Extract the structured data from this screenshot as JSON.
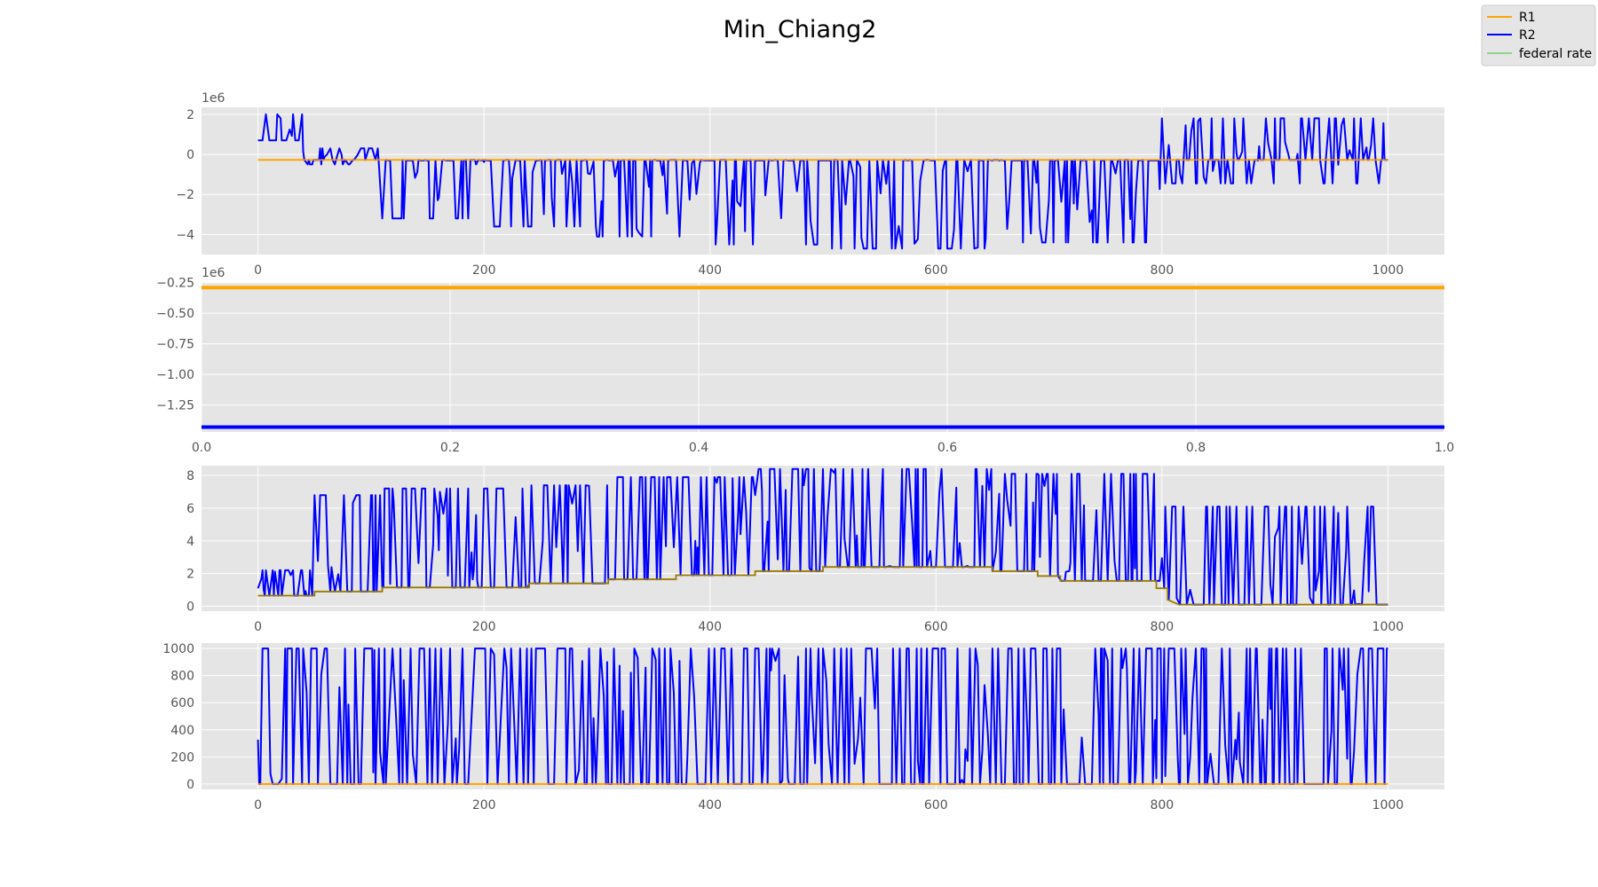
{
  "figure": {
    "title": "Min_Chiang2"
  },
  "legend": {
    "placement": "top-right",
    "entries": [
      {
        "label": "R1",
        "color": "#ffa500"
      },
      {
        "label": "R2",
        "color": "#0000ff"
      },
      {
        "label": "federal rate",
        "color": "#8fd48f"
      }
    ]
  },
  "colors": {
    "panel_background": "#e5e5e5",
    "grid": "#ffffff",
    "tick_text": "#555555"
  },
  "chart_data": [
    {
      "type": "line",
      "panel": 1,
      "offset_label": "1e6",
      "xlim": [
        -50,
        1050
      ],
      "ylim": [
        -5.0,
        2.35
      ],
      "x_ticks": [
        0,
        200,
        400,
        600,
        800,
        1000
      ],
      "x_tick_labels": [
        "0",
        "200",
        "400",
        "600",
        "800",
        "1000"
      ],
      "y_ticks": [
        2,
        0,
        -2,
        -4
      ],
      "y_tick_labels": [
        "2",
        "0",
        "−2",
        "−4"
      ],
      "grid": true,
      "series": [
        {
          "name": "R1",
          "color": "#ffa500",
          "points": [
            [
              0,
              -0.27
            ],
            [
              1000,
              -0.27
            ]
          ]
        },
        {
          "name": "R2",
          "color": "#0000ff",
          "style": "oscillating",
          "baseline": -0.27,
          "segments": [
            {
              "x0": 0,
              "x1": 40,
              "lo": 0.7,
              "hi": 2.0
            },
            {
              "x0": 40,
              "x1": 110,
              "lo": -0.5,
              "hi": 0.3
            },
            {
              "x0": 110,
              "x1": 200,
              "lo": -3.2,
              "hi": -0.3
            },
            {
              "x0": 200,
              "x1": 300,
              "lo": -3.6,
              "hi": -0.3
            },
            {
              "x0": 300,
              "x1": 400,
              "lo": -4.1,
              "hi": -0.3
            },
            {
              "x0": 400,
              "x1": 500,
              "lo": -4.5,
              "hi": -0.3
            },
            {
              "x0": 500,
              "x1": 650,
              "lo": -4.7,
              "hi": -0.3
            },
            {
              "x0": 650,
              "x1": 800,
              "lo": -4.4,
              "hi": -0.3
            },
            {
              "x0": 800,
              "x1": 1000,
              "lo": -1.45,
              "hi": 1.8
            }
          ]
        }
      ]
    },
    {
      "type": "line",
      "panel": 2,
      "offset_label": "1e6",
      "xlim": [
        0.0,
        1.0
      ],
      "ylim": [
        -1.47,
        -0.245
      ],
      "x_ticks": [
        0.0,
        0.2,
        0.4,
        0.6,
        0.8,
        1.0
      ],
      "x_tick_labels": [
        "0.0",
        "0.2",
        "0.4",
        "0.6",
        "0.8",
        "1.0"
      ],
      "y_ticks": [
        -0.25,
        -0.5,
        -0.75,
        -1.0,
        -1.25
      ],
      "y_tick_labels": [
        "−0.25",
        "−0.50",
        "−0.75",
        "−1.00",
        "−1.25"
      ],
      "grid": true,
      "series": [
        {
          "name": "R1",
          "color": "#ffa500",
          "points": [
            [
              0.0,
              -0.29
            ],
            [
              1.0,
              -0.29
            ]
          ]
        },
        {
          "name": "R2",
          "color": "#0000ff",
          "points": [
            [
              0.0,
              -1.43
            ],
            [
              1.0,
              -1.43
            ]
          ]
        }
      ]
    },
    {
      "type": "line",
      "panel": 3,
      "xlim": [
        -50,
        1050
      ],
      "ylim": [
        -0.3,
        8.6
      ],
      "x_ticks": [
        0,
        200,
        400,
        600,
        800,
        1000
      ],
      "x_tick_labels": [
        "0",
        "200",
        "400",
        "600",
        "800",
        "1000"
      ],
      "y_ticks": [
        0,
        2,
        4,
        6,
        8
      ],
      "y_tick_labels": [
        "0",
        "2",
        "4",
        "6",
        "8"
      ],
      "grid": true,
      "series": [
        {
          "name": "R1",
          "color": "#ffa500",
          "points": [
            [
              0,
              0.65
            ],
            [
              50,
              0.65
            ],
            [
              50,
              0.9
            ],
            [
              110,
              0.9
            ],
            [
              110,
              1.15
            ],
            [
              240,
              1.15
            ],
            [
              240,
              1.4
            ],
            [
              310,
              1.4
            ],
            [
              310,
              1.65
            ],
            [
              370,
              1.65
            ],
            [
              370,
              1.9
            ],
            [
              440,
              1.9
            ],
            [
              440,
              2.15
            ],
            [
              500,
              2.15
            ],
            [
              500,
              2.4
            ],
            [
              650,
              2.4
            ],
            [
              650,
              2.15
            ],
            [
              690,
              2.15
            ],
            [
              690,
              1.85
            ],
            [
              710,
              1.85
            ],
            [
              710,
              1.55
            ],
            [
              795,
              1.55
            ],
            [
              795,
              1.1
            ],
            [
              805,
              1.1
            ],
            [
              805,
              0.4
            ],
            [
              815,
              0.1
            ],
            [
              1000,
              0.1
            ]
          ]
        },
        {
          "name": "R2",
          "color": "#0000ff",
          "style": "oscillating",
          "baseline": "R1",
          "segments": [
            {
              "x0": 0,
              "x1": 50,
              "lo": 0.65,
              "hi": 2.2
            },
            {
              "x0": 50,
              "x1": 110,
              "lo": 0.9,
              "hi": 6.8
            },
            {
              "x0": 110,
              "x1": 240,
              "lo": 1.15,
              "hi": 7.2
            },
            {
              "x0": 240,
              "x1": 310,
              "lo": 1.4,
              "hi": 7.4
            },
            {
              "x0": 310,
              "x1": 440,
              "lo": 1.65,
              "hi": 7.9
            },
            {
              "x0": 440,
              "x1": 650,
              "lo": 2.15,
              "hi": 8.4
            },
            {
              "x0": 650,
              "x1": 800,
              "lo": 1.55,
              "hi": 8.1
            },
            {
              "x0": 800,
              "x1": 1000,
              "lo": 0.05,
              "hi": 6.1
            }
          ]
        }
      ]
    },
    {
      "type": "line",
      "panel": 4,
      "xlim": [
        -50,
        1050
      ],
      "ylim": [
        -40,
        1040
      ],
      "x_ticks": [
        0,
        200,
        400,
        600,
        800,
        1000
      ],
      "x_tick_labels": [
        "0",
        "200",
        "400",
        "600",
        "800",
        "1000"
      ],
      "y_ticks": [
        1000,
        800,
        600,
        400,
        200,
        0
      ],
      "y_tick_labels": [
        "1000",
        "800",
        "600",
        "400",
        "200",
        "0"
      ],
      "grid": true,
      "series": [
        {
          "name": "R1",
          "color": "#ffa500",
          "points": [
            [
              0,
              0
            ],
            [
              1000,
              0
            ]
          ]
        },
        {
          "name": "R2",
          "color": "#0000ff",
          "style": "oscillating",
          "baseline": 0,
          "segments": [
            {
              "x0": 0,
              "x1": 40,
              "lo": 0,
              "hi": 1000
            },
            {
              "x0": 40,
              "x1": 1000,
              "lo": 0,
              "hi": 1000
            }
          ]
        }
      ]
    }
  ]
}
